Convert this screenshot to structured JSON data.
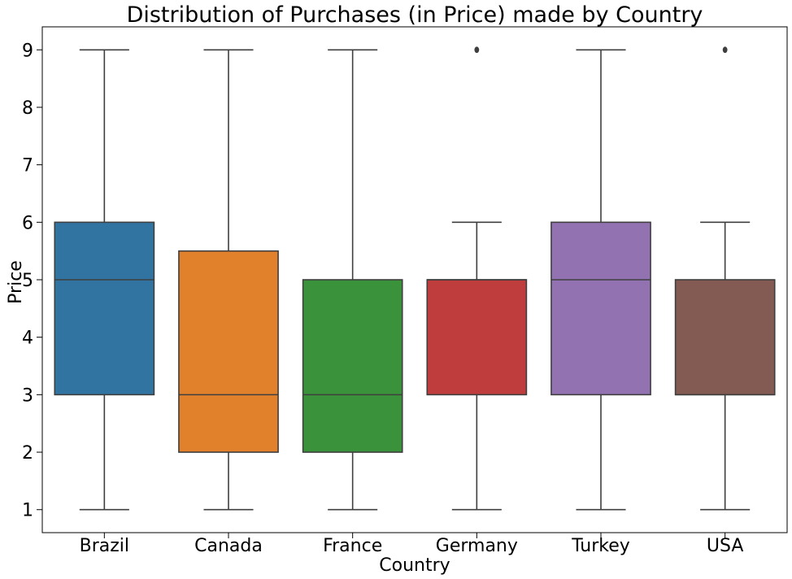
{
  "chart_data": {
    "type": "box",
    "title": "Distribution of Purchases (in Price) made by Country",
    "xlabel": "Country",
    "ylabel": "Price",
    "ylim": [
      0.6,
      9.4
    ],
    "yticks": [
      1,
      2,
      3,
      4,
      5,
      6,
      7,
      8,
      9
    ],
    "grid": false,
    "categories": [
      "Brazil",
      "Canada",
      "France",
      "Germany",
      "Turkey",
      "USA"
    ],
    "boxes": [
      {
        "category": "Brazil",
        "whisker_low": 1,
        "q1": 3,
        "median": 5,
        "q3": 6,
        "whisker_high": 9,
        "outliers": [],
        "color": "#3274a1"
      },
      {
        "category": "Canada",
        "whisker_low": 1,
        "q1": 2,
        "median": 3,
        "q3": 5.5,
        "whisker_high": 9,
        "outliers": [],
        "color": "#e1812c"
      },
      {
        "category": "France",
        "whisker_low": 1,
        "q1": 2,
        "median": 3,
        "q3": 5,
        "whisker_high": 9,
        "outliers": [],
        "color": "#3a923a"
      },
      {
        "category": "Germany",
        "whisker_low": 1,
        "q1": 3,
        "median": 5,
        "q3": 5,
        "whisker_high": 6,
        "outliers": [
          9
        ],
        "color": "#c03d3e"
      },
      {
        "category": "Turkey",
        "whisker_low": 1,
        "q1": 3,
        "median": 5,
        "q3": 6,
        "whisker_high": 9,
        "outliers": [],
        "color": "#9372b2"
      },
      {
        "category": "USA",
        "whisker_low": 1,
        "q1": 3,
        "median": 3,
        "q3": 5,
        "whisker_high": 6,
        "outliers": [
          9
        ],
        "color": "#845b53"
      }
    ],
    "line_color": "#3f3f3f"
  }
}
